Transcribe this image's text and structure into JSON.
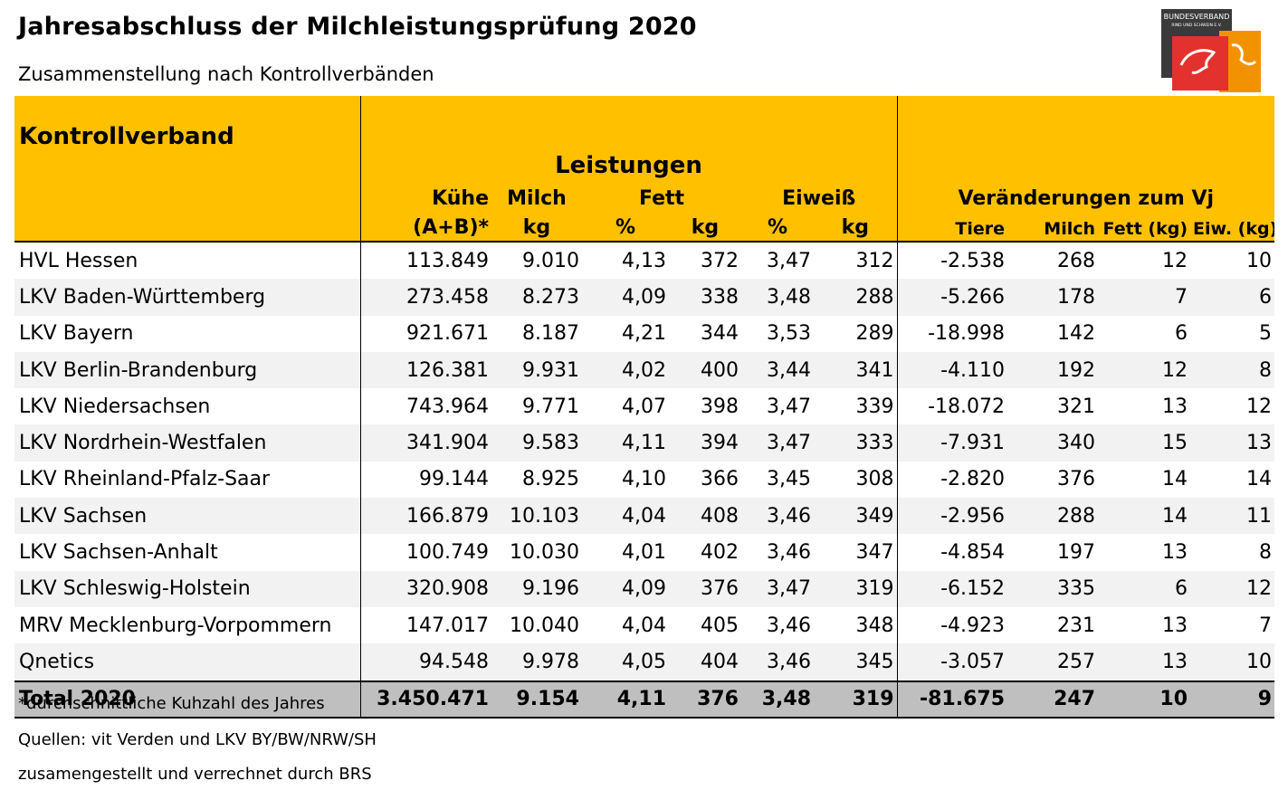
{
  "title": "Jahresabschluss der Milchleistungsprüfung 2020",
  "subtitle": "Zusammenstellung nach Kontrollverbänden",
  "logo": {
    "line1": "BUNDESVERBAND",
    "line2": "RIND UND SCHWEIN E.V.",
    "colors": [
      "#3a3a3a",
      "#E3312D",
      "#F39200"
    ]
  },
  "header": {
    "kontrollverband": "Kontrollverband",
    "leistungen": "Leistungen",
    "kuehe": "Kühe",
    "kuehe_sub": "(A+B)*",
    "milch": "Milch",
    "milch_sub": "kg",
    "fett": "Fett",
    "fett_pct": "%",
    "fett_kg": "kg",
    "eiweiss": "Eiweiß",
    "eiweiss_pct": "%",
    "eiweiss_kg": "kg",
    "veraenderungen": "Veränderungen zum Vj",
    "tiere": "Tiere",
    "v_milch": "Milch",
    "v_fett": "Fett (kg)",
    "v_eiw": "Eiw. (kg)"
  },
  "rows": [
    {
      "name": "HVL Hessen",
      "kuehe": "113.849",
      "milch": "9.010",
      "fett_pct": "4,13",
      "fett_kg": "372",
      "eiw_pct": "3,47",
      "eiw_kg": "312",
      "tiere": "-2.538",
      "v_milch": "268",
      "v_fett": "12",
      "v_eiw": "10"
    },
    {
      "name": "LKV Baden-Württemberg",
      "kuehe": "273.458",
      "milch": "8.273",
      "fett_pct": "4,09",
      "fett_kg": "338",
      "eiw_pct": "3,48",
      "eiw_kg": "288",
      "tiere": "-5.266",
      "v_milch": "178",
      "v_fett": "7",
      "v_eiw": "6"
    },
    {
      "name": "LKV Bayern",
      "kuehe": "921.671",
      "milch": "8.187",
      "fett_pct": "4,21",
      "fett_kg": "344",
      "eiw_pct": "3,53",
      "eiw_kg": "289",
      "tiere": "-18.998",
      "v_milch": "142",
      "v_fett": "6",
      "v_eiw": "5"
    },
    {
      "name": "LKV Berlin-Brandenburg",
      "kuehe": "126.381",
      "milch": "9.931",
      "fett_pct": "4,02",
      "fett_kg": "400",
      "eiw_pct": "3,44",
      "eiw_kg": "341",
      "tiere": "-4.110",
      "v_milch": "192",
      "v_fett": "12",
      "v_eiw": "8"
    },
    {
      "name": "LKV Niedersachsen",
      "kuehe": "743.964",
      "milch": "9.771",
      "fett_pct": "4,07",
      "fett_kg": "398",
      "eiw_pct": "3,47",
      "eiw_kg": "339",
      "tiere": "-18.072",
      "v_milch": "321",
      "v_fett": "13",
      "v_eiw": "12"
    },
    {
      "name": "LKV Nordrhein-Westfalen",
      "kuehe": "341.904",
      "milch": "9.583",
      "fett_pct": "4,11",
      "fett_kg": "394",
      "eiw_pct": "3,47",
      "eiw_kg": "333",
      "tiere": "-7.931",
      "v_milch": "340",
      "v_fett": "15",
      "v_eiw": "13"
    },
    {
      "name": "LKV Rheinland-Pfalz-Saar",
      "kuehe": "99.144",
      "milch": "8.925",
      "fett_pct": "4,10",
      "fett_kg": "366",
      "eiw_pct": "3,45",
      "eiw_kg": "308",
      "tiere": "-2.820",
      "v_milch": "376",
      "v_fett": "14",
      "v_eiw": "14"
    },
    {
      "name": "LKV Sachsen",
      "kuehe": "166.879",
      "milch": "10.103",
      "fett_pct": "4,04",
      "fett_kg": "408",
      "eiw_pct": "3,46",
      "eiw_kg": "349",
      "tiere": "-2.956",
      "v_milch": "288",
      "v_fett": "14",
      "v_eiw": "11"
    },
    {
      "name": "LKV Sachsen-Anhalt",
      "kuehe": "100.749",
      "milch": "10.030",
      "fett_pct": "4,01",
      "fett_kg": "402",
      "eiw_pct": "3,46",
      "eiw_kg": "347",
      "tiere": "-4.854",
      "v_milch": "197",
      "v_fett": "13",
      "v_eiw": "8"
    },
    {
      "name": "LKV Schleswig-Holstein",
      "kuehe": "320.908",
      "milch": "9.196",
      "fett_pct": "4,09",
      "fett_kg": "376",
      "eiw_pct": "3,47",
      "eiw_kg": "319",
      "tiere": "-6.152",
      "v_milch": "335",
      "v_fett": "6",
      "v_eiw": "12"
    },
    {
      "name": "MRV Mecklenburg-Vorpommern",
      "kuehe": "147.017",
      "milch": "10.040",
      "fett_pct": "4,04",
      "fett_kg": "405",
      "eiw_pct": "3,46",
      "eiw_kg": "348",
      "tiere": "-4.923",
      "v_milch": "231",
      "v_fett": "13",
      "v_eiw": "7"
    },
    {
      "name": "Qnetics",
      "kuehe": "94.548",
      "milch": "9.978",
      "fett_pct": "4,05",
      "fett_kg": "404",
      "eiw_pct": "3,46",
      "eiw_kg": "345",
      "tiere": "-3.057",
      "v_milch": "257",
      "v_fett": "13",
      "v_eiw": "10"
    }
  ],
  "total": {
    "name": "Total 2020",
    "kuehe": "3.450.471",
    "milch": "9.154",
    "fett_pct": "4,11",
    "fett_kg": "376",
    "eiw_pct": "3,48",
    "eiw_kg": "319",
    "tiere": "-81.675",
    "v_milch": "247",
    "v_fett": "10",
    "v_eiw": "9"
  },
  "footnotes": {
    "note": "*durchschnittliche Kuhzahl des Jahres",
    "sources": "Quellen: vit Verden und LKV BY/BW/NRW/SH",
    "compiled": "zusamengestellt und verrechnet durch BRS"
  }
}
